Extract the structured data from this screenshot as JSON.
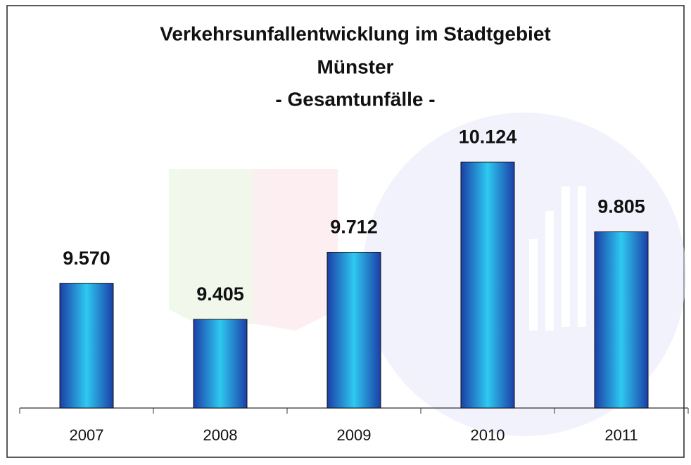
{
  "chart_data": {
    "type": "bar",
    "title": [
      "Verkehrsunfallentwicklung im Stadtgebiet",
      "Münster",
      "- Gesamtunfälle -"
    ],
    "categories": [
      "2007",
      "2008",
      "2009",
      "2010",
      "2011"
    ],
    "values": [
      9570,
      9405,
      9712,
      10124,
      9805
    ],
    "value_labels": [
      "9.570",
      "9.405",
      "9.712",
      "10.124",
      "9.805"
    ],
    "ylim": [
      9000,
      10800
    ]
  }
}
